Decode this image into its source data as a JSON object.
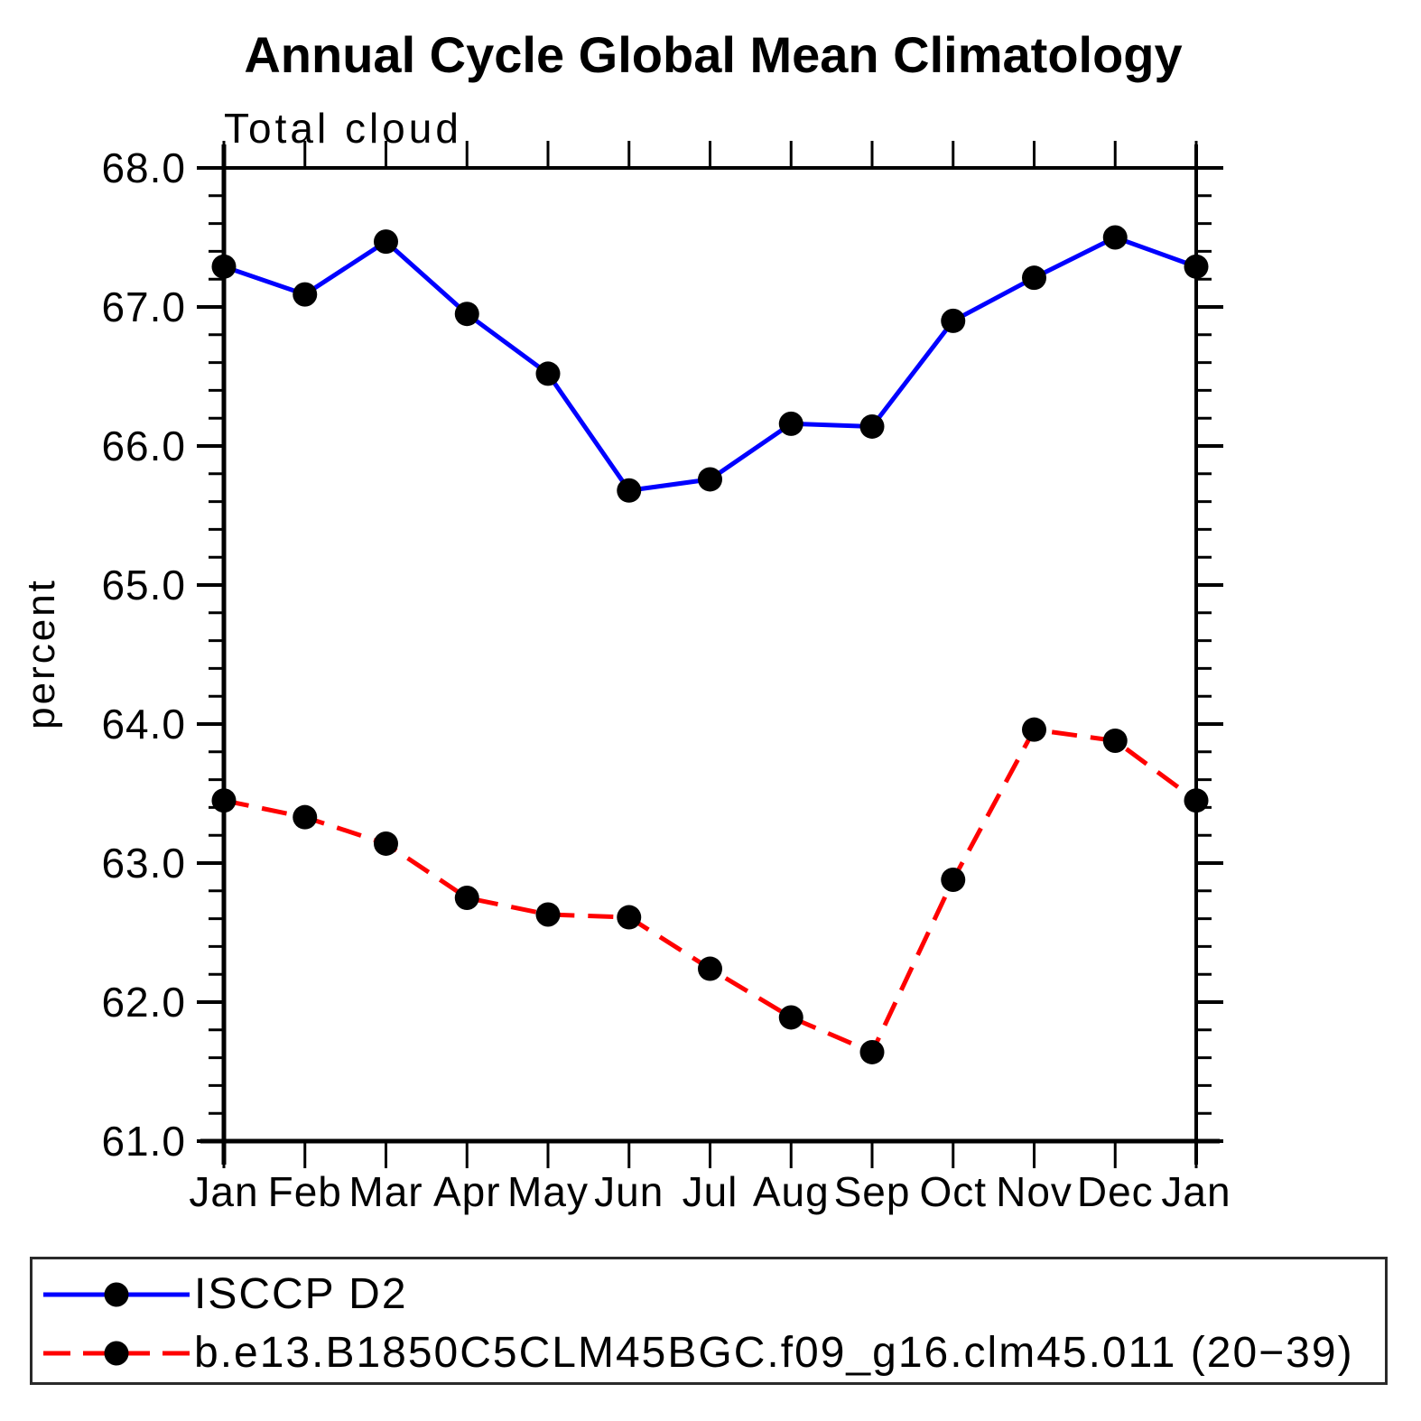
{
  "chart_data": {
    "type": "line",
    "title": "Annual Cycle Global Mean Climatology",
    "subtitle": "Total cloud",
    "xlabel": "",
    "ylabel": "percent",
    "categories": [
      "Jan",
      "Feb",
      "Mar",
      "Apr",
      "May",
      "Jun",
      "Jul",
      "Aug",
      "Sep",
      "Oct",
      "Nov",
      "Dec",
      "Jan"
    ],
    "ylim": [
      61.0,
      68.0
    ],
    "ytick_major_step": 1.0,
    "ytick_minor_step": 0.2,
    "ytick_label_decimals": 1,
    "grid": false,
    "legend_position": "bottom",
    "axis_color": "#000000",
    "marker_color": "#000000",
    "series": [
      {
        "name": "ISCCP D2",
        "color": "#0000ff",
        "line_style": "solid",
        "marker": "filled-circle",
        "values": [
          67.29,
          67.09,
          67.47,
          66.95,
          66.52,
          65.68,
          65.76,
          66.16,
          66.14,
          66.9,
          67.21,
          67.5,
          67.29
        ]
      },
      {
        "name": "b.e13.B1850C5CLM45BGC.f09_g16.clm45.011 (20−39)",
        "color": "#ff0000",
        "line_style": "dashed",
        "marker": "filled-circle",
        "values": [
          63.45,
          63.33,
          63.14,
          62.75,
          62.63,
          62.61,
          62.24,
          61.89,
          61.64,
          62.88,
          63.96,
          63.88,
          63.45
        ]
      }
    ]
  }
}
